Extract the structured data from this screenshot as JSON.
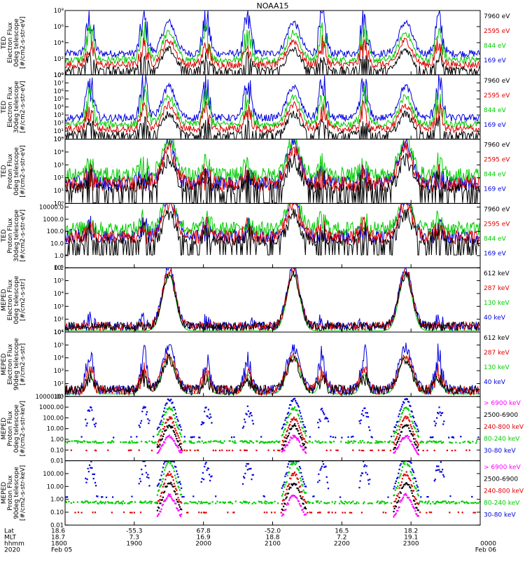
{
  "title": "NOAA15",
  "panels": [
    {
      "ylabel": [
        "TED",
        "Electron Flux",
        "0deg telescope",
        "[#/cm2-s-str-eV]"
      ],
      "ticks": [
        {
          "v": 0,
          "t": "10⁰"
        },
        {
          "v": 2,
          "t": "10²"
        },
        {
          "v": 4,
          "t": "10⁴"
        },
        {
          "v": 6,
          "t": "10⁶"
        },
        {
          "v": 8,
          "t": "10⁸"
        }
      ],
      "ymin": 0,
      "ymax": 8,
      "legend": [
        {
          "text": "7960 eV",
          "color": "#000000"
        },
        {
          "text": "2595 eV",
          "color": "#e00000"
        },
        {
          "text": "844 eV",
          "color": "#00cc00"
        },
        {
          "text": "169 eV",
          "color": "#0000e0"
        }
      ],
      "kind": "ted_e"
    },
    {
      "ylabel": [
        "TED",
        "Electron Flux",
        "30deg telescope",
        "[#/cm2-s-str-eV]"
      ],
      "ticks": [
        {
          "v": 0,
          "t": "10⁰"
        },
        {
          "v": 1,
          "t": "10¹"
        },
        {
          "v": 2,
          "t": "10²"
        },
        {
          "v": 3,
          "t": "10³"
        },
        {
          "v": 4,
          "t": "10⁴"
        },
        {
          "v": 5,
          "t": "10⁵"
        },
        {
          "v": 6,
          "t": "10⁶"
        },
        {
          "v": 7,
          "t": "10⁷"
        },
        {
          "v": 8,
          "t": "10⁸"
        }
      ],
      "ymin": 0,
      "ymax": 8,
      "legend": [
        {
          "text": "7960 eV",
          "color": "#000000"
        },
        {
          "text": "2595 eV",
          "color": "#e00000"
        },
        {
          "text": "844 eV",
          "color": "#00cc00"
        },
        {
          "text": "169 eV",
          "color": "#0000e0"
        }
      ],
      "kind": "ted_e"
    },
    {
      "ylabel": [
        "TED",
        "Proton Flux",
        "0deg telescope",
        "[#/cm2-s-str-eV]"
      ],
      "ticks": [
        {
          "v": 0,
          "t": "10⁰"
        },
        {
          "v": 1,
          "t": "10¹"
        },
        {
          "v": 2,
          "t": "10²"
        },
        {
          "v": 3,
          "t": "10³"
        },
        {
          "v": 4,
          "t": "10⁴"
        },
        {
          "v": 5,
          "t": "10⁵"
        }
      ],
      "ymin": 0,
      "ymax": 5,
      "legend": [
        {
          "text": "7960 eV",
          "color": "#000000"
        },
        {
          "text": "2595 eV",
          "color": "#e00000"
        },
        {
          "text": "844 eV",
          "color": "#00cc00"
        },
        {
          "text": "169 eV",
          "color": "#0000e0"
        }
      ],
      "kind": "ted_p"
    },
    {
      "ylabel": [
        "TED",
        "Proton Flux",
        "30deg telescope",
        "[#/cm2-s-str-eV]"
      ],
      "ticks": [
        {
          "v": -1,
          "t": "0.1"
        },
        {
          "v": 0,
          "t": "1.0"
        },
        {
          "v": 1,
          "t": "10.0"
        },
        {
          "v": 2,
          "t": "100.0"
        },
        {
          "v": 3,
          "t": "1000.0"
        },
        {
          "v": 4,
          "t": "10000.0"
        }
      ],
      "ymin": -1,
      "ymax": 4.3,
      "legend": [
        {
          "text": "7960 eV",
          "color": "#000000"
        },
        {
          "text": "2595 eV",
          "color": "#e00000"
        },
        {
          "text": "844 eV",
          "color": "#00cc00"
        },
        {
          "text": "169 eV",
          "color": "#0000e0"
        }
      ],
      "kind": "ted_p"
    },
    {
      "ylabel": [
        "MEPED",
        "Electron Flux",
        "0deg telescope",
        "[#/cm2-s-str]"
      ],
      "ticks": [
        {
          "v": 1,
          "t": "10¹"
        },
        {
          "v": 2,
          "t": "10²"
        },
        {
          "v": 3,
          "t": "10³"
        },
        {
          "v": 4,
          "t": "10⁴"
        },
        {
          "v": 5,
          "t": "10⁵"
        },
        {
          "v": 6,
          "t": "10⁶"
        }
      ],
      "ymin": 1,
      "ymax": 6,
      "legend": [
        {
          "text": "612 keV",
          "color": "#000000"
        },
        {
          "text": "287 keV",
          "color": "#e00000"
        },
        {
          "text": "130 keV",
          "color": "#00cc00"
        },
        {
          "text": "40 keV",
          "color": "#0000e0"
        }
      ],
      "kind": "mep_e0"
    },
    {
      "ylabel": [
        "MEPED",
        "Electron Flux",
        "90deg telescope",
        "[#/cm2-s-str]"
      ],
      "ticks": [
        {
          "v": 1,
          "t": "10¹"
        },
        {
          "v": 2,
          "t": "10²"
        },
        {
          "v": 3,
          "t": "10³"
        },
        {
          "v": 4,
          "t": "10⁴"
        },
        {
          "v": 5,
          "t": "10⁵"
        },
        {
          "v": 6,
          "t": "10⁶"
        }
      ],
      "ymin": 1,
      "ymax": 6,
      "legend": [
        {
          "text": "612 keV",
          "color": "#000000"
        },
        {
          "text": "287 keV",
          "color": "#e00000"
        },
        {
          "text": "130 keV",
          "color": "#00cc00"
        },
        {
          "text": "40 keV",
          "color": "#0000e0"
        }
      ],
      "kind": "mep_e90"
    },
    {
      "ylabel": [
        "MEPED",
        "Proton Flux",
        "0deg telescope",
        "[#/cm2-s-str-keV]"
      ],
      "ticks": [
        {
          "v": -2,
          "t": "0.01"
        },
        {
          "v": -1,
          "t": "0.10"
        },
        {
          "v": 0,
          "t": "1.00"
        },
        {
          "v": 1,
          "t": "10.00"
        },
        {
          "v": 2,
          "t": "100.00"
        },
        {
          "v": 3,
          "t": "1000.00"
        },
        {
          "v": 4,
          "t": "10000.00"
        }
      ],
      "ymin": -2,
      "ymax": 4,
      "legend": [
        {
          "text": "> 6900 keV",
          "color": "#ff00ff"
        },
        {
          "text": "2500-6900",
          "color": "#000000"
        },
        {
          "text": "240-800 keV",
          "color": "#e00000"
        },
        {
          "text": "80-240 keV",
          "color": "#00cc00"
        },
        {
          "text": "30-80 keV",
          "color": "#0000e0"
        }
      ],
      "kind": "mep_p"
    },
    {
      "ylabel": [
        "MEPED",
        "Proton Flux",
        "90deg telescope",
        "[#/cm2-s-str-keV]"
      ],
      "ticks": [
        {
          "v": -2,
          "t": "0.01"
        },
        {
          "v": -1,
          "t": "0.10"
        },
        {
          "v": 0,
          "t": "1.00"
        },
        {
          "v": 1,
          "t": "10.00"
        },
        {
          "v": 2,
          "t": "100.00"
        }
      ],
      "ymin": -2,
      "ymax": 3,
      "legend": [
        {
          "text": "> 6900 keV",
          "color": "#ff00ff"
        },
        {
          "text": "2500-6900",
          "color": "#000000"
        },
        {
          "text": "240-800 keV",
          "color": "#e00000"
        },
        {
          "text": "80-240 keV",
          "color": "#00cc00"
        },
        {
          "text": "30-80 keV",
          "color": "#0000e0"
        }
      ],
      "kind": "mep_p"
    }
  ],
  "x_axis": {
    "row_labels": [
      "Lat",
      "MLT",
      "hhmm",
      "2020"
    ],
    "ticks": [
      {
        "lat": "18.6",
        "mlt": "18.7",
        "hhmm": "1800",
        "date": "Feb 05"
      },
      {
        "lat": "-55.3",
        "mlt": "7.3",
        "hhmm": "1900",
        "date": ""
      },
      {
        "lat": "67.8",
        "mlt": "16.9",
        "hhmm": "2000",
        "date": ""
      },
      {
        "lat": "-52.0",
        "mlt": "18.8",
        "hhmm": "2100",
        "date": ""
      },
      {
        "lat": "16.5",
        "mlt": "7.2",
        "hhmm": "2200",
        "date": ""
      },
      {
        "lat": "18.2",
        "mlt": "19.1",
        "hhmm": "2300",
        "date": ""
      },
      {
        "lat": "",
        "mlt": "",
        "hhmm": "0000",
        "date": "Feb 06"
      }
    ]
  },
  "chart_data": {
    "type": "line",
    "title": "NOAA15",
    "x_range": [
      "2020-02-05 18:00",
      "2020-02-06 00:00"
    ],
    "passes_centers_hhmm": [
      "1830",
      "1915",
      "2000",
      "2045",
      "2130",
      "2215",
      "2300",
      "2345"
    ],
    "colors": {
      "black": "#000000",
      "red": "#e00000",
      "green": "#00cc00",
      "blue": "#0000e0",
      "magenta": "#ff00ff"
    }
  }
}
